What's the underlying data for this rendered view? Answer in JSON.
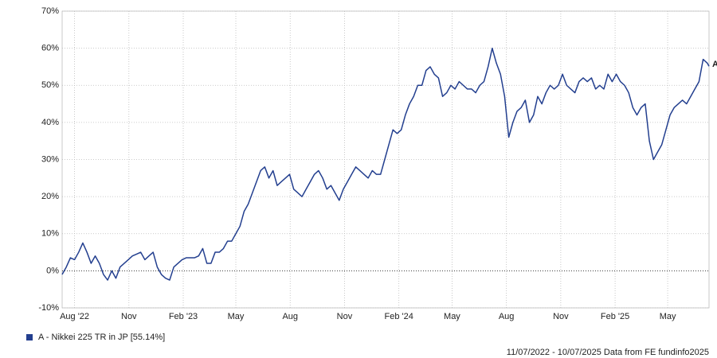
{
  "chart_data": {
    "type": "line",
    "x": [
      "2022-07-11",
      "2022-07-18",
      "2022-07-25",
      "2022-08-01",
      "2022-08-08",
      "2022-08-15",
      "2022-08-22",
      "2022-08-29",
      "2022-09-05",
      "2022-09-12",
      "2022-09-19",
      "2022-09-26",
      "2022-10-03",
      "2022-10-10",
      "2022-10-17",
      "2022-10-24",
      "2022-10-31",
      "2022-11-07",
      "2022-11-14",
      "2022-11-21",
      "2022-11-28",
      "2022-12-05",
      "2022-12-12",
      "2022-12-19",
      "2022-12-26",
      "2023-01-02",
      "2023-01-09",
      "2023-01-16",
      "2023-01-23",
      "2023-01-30",
      "2023-02-06",
      "2023-02-13",
      "2023-02-20",
      "2023-02-27",
      "2023-03-06",
      "2023-03-13",
      "2023-03-20",
      "2023-03-27",
      "2023-04-03",
      "2023-04-10",
      "2023-04-17",
      "2023-04-24",
      "2023-05-01",
      "2023-05-08",
      "2023-05-15",
      "2023-05-22",
      "2023-05-29",
      "2023-06-05",
      "2023-06-12",
      "2023-06-19",
      "2023-06-26",
      "2023-07-03",
      "2023-07-10",
      "2023-07-17",
      "2023-07-24",
      "2023-07-31",
      "2023-08-07",
      "2023-08-14",
      "2023-08-21",
      "2023-08-28",
      "2023-09-04",
      "2023-09-11",
      "2023-09-18",
      "2023-09-25",
      "2023-10-02",
      "2023-10-09",
      "2023-10-16",
      "2023-10-23",
      "2023-10-30",
      "2023-11-06",
      "2023-11-13",
      "2023-11-20",
      "2023-11-27",
      "2023-12-04",
      "2023-12-11",
      "2023-12-18",
      "2023-12-25",
      "2024-01-01",
      "2024-01-08",
      "2024-01-15",
      "2024-01-22",
      "2024-01-29",
      "2024-02-05",
      "2024-02-12",
      "2024-02-19",
      "2024-02-26",
      "2024-03-04",
      "2024-03-11",
      "2024-03-18",
      "2024-03-25",
      "2024-04-01",
      "2024-04-08",
      "2024-04-15",
      "2024-04-22",
      "2024-04-29",
      "2024-05-06",
      "2024-05-13",
      "2024-05-20",
      "2024-05-27",
      "2024-06-03",
      "2024-06-10",
      "2024-06-17",
      "2024-06-24",
      "2024-07-01",
      "2024-07-08",
      "2024-07-15",
      "2024-07-22",
      "2024-07-29",
      "2024-08-05",
      "2024-08-12",
      "2024-08-19",
      "2024-08-26",
      "2024-09-02",
      "2024-09-09",
      "2024-09-16",
      "2024-09-23",
      "2024-09-30",
      "2024-10-07",
      "2024-10-14",
      "2024-10-21",
      "2024-10-28",
      "2024-11-04",
      "2024-11-11",
      "2024-11-18",
      "2024-11-25",
      "2024-12-02",
      "2024-12-09",
      "2024-12-16",
      "2024-12-23",
      "2024-12-30",
      "2025-01-06",
      "2025-01-13",
      "2025-01-20",
      "2025-01-27",
      "2025-02-03",
      "2025-02-10",
      "2025-02-17",
      "2025-02-24",
      "2025-03-03",
      "2025-03-10",
      "2025-03-17",
      "2025-03-24",
      "2025-03-31",
      "2025-04-07",
      "2025-04-14",
      "2025-04-21",
      "2025-04-28",
      "2025-05-05",
      "2025-05-12",
      "2025-05-19",
      "2025-05-26",
      "2025-06-02",
      "2025-06-09",
      "2025-06-16",
      "2025-06-23",
      "2025-06-30",
      "2025-07-07",
      "2025-07-10"
    ],
    "series": [
      {
        "name": "A - Nikkei 225 TR in JP [55.14%]",
        "color": "#233f8f",
        "values": [
          -1,
          1,
          3.5,
          3,
          5,
          7.5,
          5,
          2,
          4,
          2,
          -1,
          -2.5,
          0,
          -2,
          1,
          2,
          3,
          4,
          4.5,
          5,
          3,
          4,
          5,
          1,
          -1,
          -2,
          -2.5,
          1,
          2,
          3,
          3.5,
          3.5,
          3.5,
          4,
          6,
          2,
          2,
          5,
          5,
          6,
          8,
          8,
          10,
          12,
          16,
          18,
          21,
          24,
          27,
          28,
          25,
          27,
          23,
          24,
          25,
          26,
          22,
          21,
          20,
          22,
          24,
          26,
          27,
          25,
          22,
          23,
          21,
          19,
          22,
          24,
          26,
          28,
          27,
          26,
          25,
          27,
          26,
          26,
          30,
          34,
          38,
          37,
          38,
          42,
          45,
          47,
          50,
          50,
          54,
          55,
          53,
          52,
          47,
          48,
          50,
          49,
          51,
          50,
          49,
          49,
          48,
          50,
          51,
          55,
          60,
          56,
          53,
          47,
          36,
          40,
          43,
          44,
          46,
          40,
          42,
          47,
          45,
          48,
          50,
          49,
          50,
          53,
          50,
          49,
          48,
          51,
          52,
          51,
          52,
          49,
          50,
          49,
          53,
          51,
          53,
          51,
          50,
          48,
          44,
          42,
          44,
          45,
          35,
          30,
          32,
          34,
          38,
          42,
          44,
          45,
          46,
          45,
          47,
          49,
          51,
          57,
          56,
          55.14
        ]
      }
    ],
    "end_label": "A",
    "xlim": [
      "2022-07-11",
      "2025-07-10"
    ],
    "xticks": [
      {
        "value": "2022-08-01",
        "label": "Aug '22"
      },
      {
        "value": "2022-11-01",
        "label": "Nov"
      },
      {
        "value": "2023-02-01",
        "label": "Feb '23"
      },
      {
        "value": "2023-05-01",
        "label": "May"
      },
      {
        "value": "2023-08-01",
        "label": "Aug"
      },
      {
        "value": "2023-11-01",
        "label": "Nov"
      },
      {
        "value": "2024-02-01",
        "label": "Feb '24"
      },
      {
        "value": "2024-05-01",
        "label": "May"
      },
      {
        "value": "2024-08-01",
        "label": "Aug"
      },
      {
        "value": "2024-11-01",
        "label": "Nov"
      },
      {
        "value": "2025-02-01",
        "label": "Feb '25"
      },
      {
        "value": "2025-05-01",
        "label": "May"
      }
    ],
    "ylim": [
      -10,
      70
    ],
    "yticks": [
      {
        "value": -10,
        "label": "-10%"
      },
      {
        "value": 0,
        "label": "0%"
      },
      {
        "value": 10,
        "label": "10%"
      },
      {
        "value": 20,
        "label": "20%"
      },
      {
        "value": 30,
        "label": "30%"
      },
      {
        "value": 40,
        "label": "40%"
      },
      {
        "value": 50,
        "label": "50%"
      },
      {
        "value": 60,
        "label": "60%"
      },
      {
        "value": 70,
        "label": "70%"
      }
    ],
    "grid": true,
    "footer": "11/07/2022 - 10/07/2025 Data from FE fundinfo2025"
  }
}
